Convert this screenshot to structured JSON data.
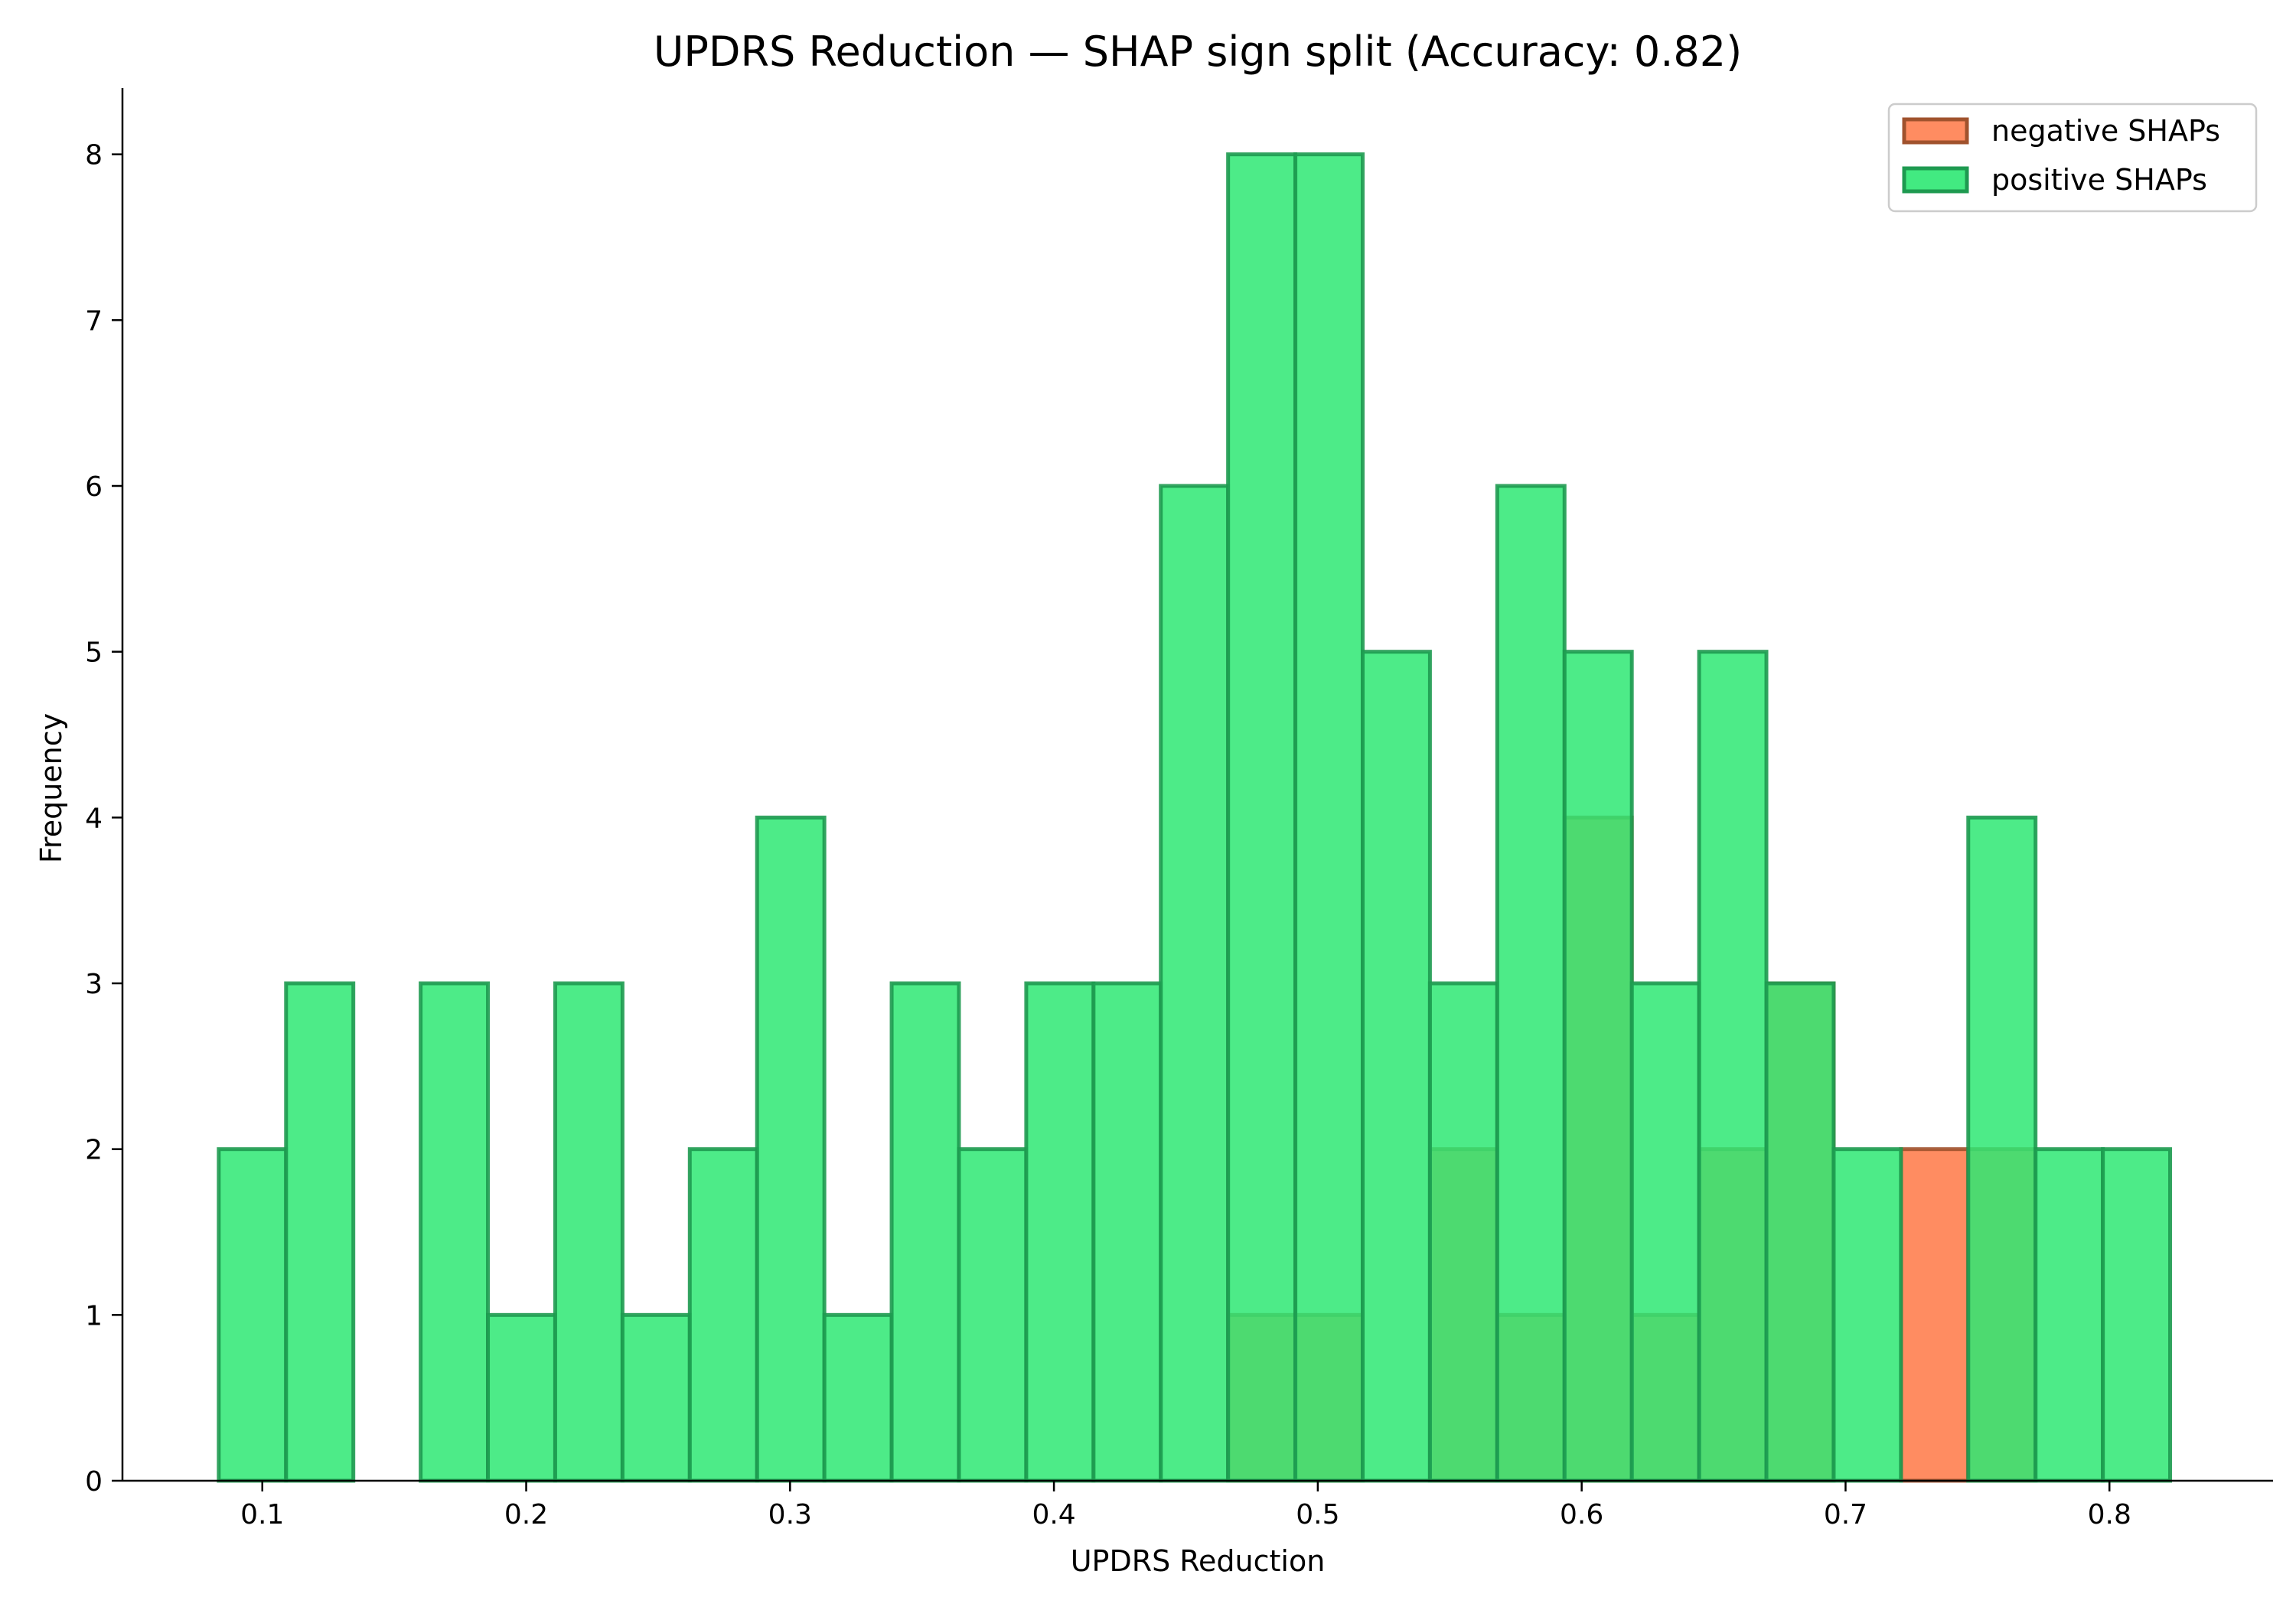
{
  "chart_data": {
    "type": "bar",
    "title": "UPDRS Reduction — SHAP sign split (Accuracy: 0.82)",
    "xlabel": "UPDRS Reduction",
    "ylabel": "Frequency",
    "xlim": [
      0.047,
      0.862
    ],
    "ylim": [
      0,
      8.4
    ],
    "xticks": [
      0.1,
      0.2,
      0.3,
      0.4,
      0.5,
      0.6,
      0.7,
      0.8
    ],
    "xtick_labels": [
      "0.1",
      "0.2",
      "0.3",
      "0.4",
      "0.5",
      "0.6",
      "0.7",
      "0.8"
    ],
    "yticks": [
      0,
      1,
      2,
      3,
      4,
      5,
      6,
      7,
      8
    ],
    "ytick_labels": [
      "0",
      "1",
      "2",
      "3",
      "4",
      "5",
      "6",
      "7",
      "8"
    ],
    "grid": false,
    "legend_position": "top-right",
    "bin_edges": [
      0.0835,
      0.109,
      0.1345,
      0.16,
      0.1855,
      0.211,
      0.2365,
      0.262,
      0.2875,
      0.313,
      0.3385,
      0.364,
      0.3895,
      0.415,
      0.4405,
      0.466,
      0.4915,
      0.517,
      0.5425,
      0.568,
      0.5935,
      0.619,
      0.6445,
      0.67,
      0.6955,
      0.721,
      0.7465,
      0.772,
      0.7975,
      0.823
    ],
    "series": [
      {
        "name": "negative SHAPs",
        "color": "#ff7f50",
        "edge_color": "#a0522d",
        "values": [
          0,
          0,
          0,
          0,
          0,
          0,
          0,
          0,
          0,
          0,
          0,
          0,
          0,
          0,
          0,
          1,
          1,
          0,
          2,
          1,
          4,
          1,
          2,
          3,
          0,
          2,
          2,
          0,
          0
        ]
      },
      {
        "name": "positive SHAPs",
        "color": "#2ee873",
        "edge_color": "#1e9a50",
        "values": [
          2,
          3,
          0,
          3,
          1,
          3,
          1,
          2,
          4,
          1,
          3,
          2,
          3,
          3,
          6,
          8,
          8,
          5,
          3,
          6,
          5,
          3,
          5,
          3,
          2,
          0,
          4,
          2,
          2
        ]
      }
    ]
  }
}
